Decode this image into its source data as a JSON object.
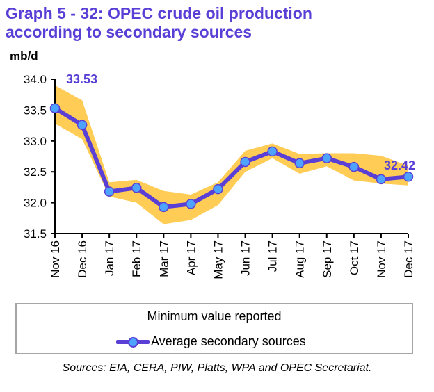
{
  "title_line1": "Graph 5 - 32: OPEC crude oil production",
  "title_line2": "according to secondary sources",
  "unit": "mb/d",
  "source": "Sources:  EIA, CERA, PIW, Platts, WPA and OPEC Secretariat.",
  "colors": {
    "title": "#5a3fd6",
    "line": "#5a3fd6",
    "marker": "#4da3ff",
    "band": "#ffcc55"
  },
  "chart_data": {
    "type": "line",
    "title": "Graph 5 - 32: OPEC crude oil production according to secondary sources",
    "xlabel": "",
    "ylabel": "mb/d",
    "ylim": [
      31.5,
      34.0
    ],
    "yticks": [
      "31.5",
      "32.0",
      "32.5",
      "33.0",
      "33.5",
      "34.0"
    ],
    "grid": false,
    "legend_position": "bottom",
    "categories": [
      "Nov 16",
      "Dec 16",
      "Jan 17",
      "Feb 17",
      "Mar 17",
      "Apr 17",
      "May 17",
      "Jun 17",
      "Jul 17",
      "Aug 17",
      "Sep 17",
      "Oct 17",
      "Nov 17",
      "Dec 17"
    ],
    "series": [
      {
        "name": "Average secondary sources",
        "type": "line-markers",
        "values": [
          33.53,
          33.26,
          32.18,
          32.24,
          31.93,
          31.98,
          32.22,
          32.66,
          32.83,
          32.64,
          32.72,
          32.58,
          32.38,
          32.42
        ]
      },
      {
        "name": "Minimum value reported",
        "type": "band",
        "upper": [
          33.9,
          33.66,
          32.33,
          32.37,
          32.19,
          32.13,
          32.33,
          32.84,
          32.96,
          32.79,
          32.8,
          32.8,
          32.76,
          32.6
        ],
        "lower": [
          33.28,
          33.03,
          32.1,
          32.0,
          31.65,
          31.72,
          31.96,
          32.5,
          32.72,
          32.47,
          32.59,
          32.36,
          32.31,
          32.28
        ]
      }
    ],
    "annotations": [
      {
        "category": "Nov 16",
        "text": "33.53"
      },
      {
        "category": "Dec 17",
        "text": "32.42"
      }
    ]
  },
  "legend": {
    "items": [
      "Minimum value reported",
      "Average secondary sources"
    ]
  }
}
